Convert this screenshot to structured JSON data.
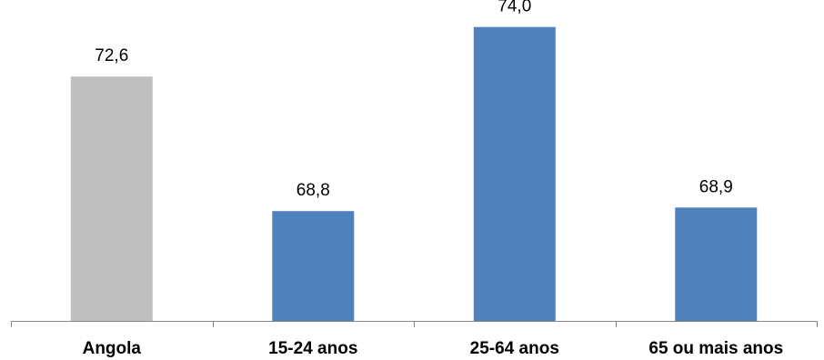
{
  "chart_data": {
    "type": "bar",
    "categories": [
      "Angola",
      "15-24 anos",
      "25-64 anos",
      "65 ou mais anos"
    ],
    "values": [
      72.6,
      68.8,
      74.0,
      68.9
    ],
    "value_labels": [
      "72,6",
      "68,8",
      "74,0",
      "68,9"
    ],
    "colors": [
      "#bfbfbf",
      "#4f81bd",
      "#4f81bd",
      "#4f81bd"
    ],
    "axis_color": "#868686",
    "ylim": [
      65.7,
      74.3
    ],
    "title": "",
    "xlabel": "",
    "ylabel": "",
    "grid": false,
    "legend": "none"
  }
}
